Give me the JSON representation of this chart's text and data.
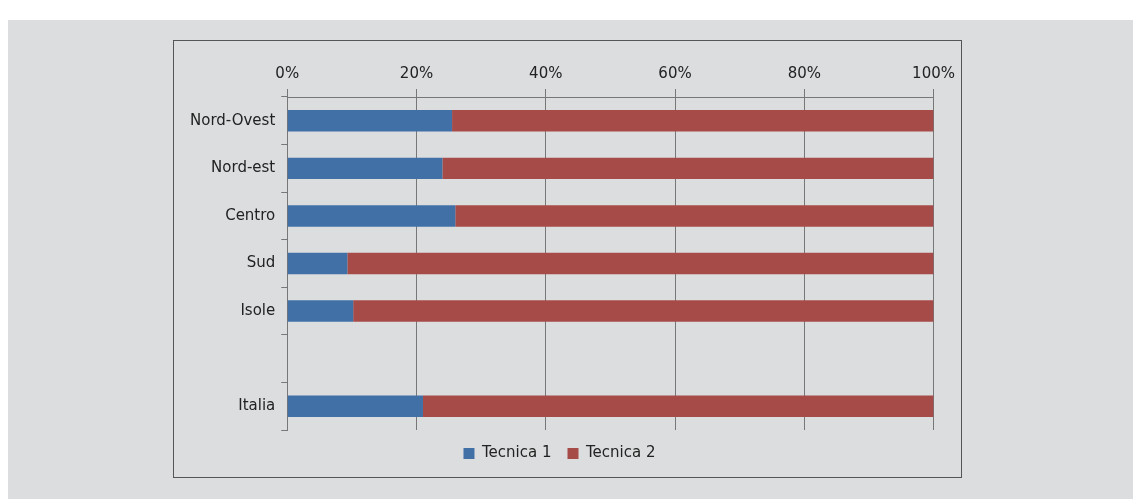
{
  "chart_data": {
    "type": "bar",
    "orientation": "horizontal",
    "stacked": true,
    "categories": [
      "Nord-Ovest",
      "Nord-est",
      "Centro",
      "Sud",
      "Isole",
      null,
      "Italia"
    ],
    "series": [
      {
        "name": "Tecnica 1",
        "color": "#4170a7",
        "values": [
          25.5,
          24,
          26,
          9.3,
          10.2,
          null,
          21
        ]
      },
      {
        "name": "Tecnica 2",
        "color": "#a64b48",
        "values": [
          74.5,
          76,
          74,
          90.7,
          89.8,
          null,
          79
        ]
      }
    ],
    "xlim": [
      0,
      100
    ],
    "xticks": [
      {
        "value": 0,
        "label": "0%"
      },
      {
        "value": 20,
        "label": "20%"
      },
      {
        "value": 40,
        "label": "40%"
      },
      {
        "value": 60,
        "label": "60%"
      },
      {
        "value": 80,
        "label": "80%"
      },
      {
        "value": 100,
        "label": "100%"
      }
    ],
    "grid": "x",
    "legend": "bottom"
  }
}
